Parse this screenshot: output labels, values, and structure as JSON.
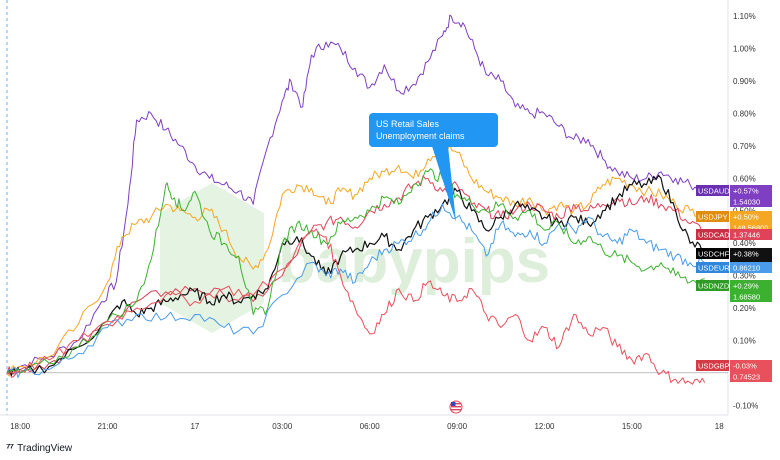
{
  "watermark": "babypips",
  "annotation": {
    "lines": [
      "US Retail Sales",
      "Unemployment claims"
    ],
    "color": "#2196f3"
  },
  "branding": {
    "icon": "tradingview-icon",
    "name": "TradingView"
  },
  "event_icon": "us-flag-icon",
  "chart_data": {
    "type": "line",
    "y_unit": "%",
    "ylim": [
      -0.13,
      1.15
    ],
    "y_ticks": [
      "1.10%",
      "1.00%",
      "0.90%",
      "0.80%",
      "0.70%",
      "0.60%",
      "0.50%",
      "0.40%",
      "0.30%",
      "0.20%",
      "0.10%",
      "-0.10%"
    ],
    "y_tick_values": [
      1.1,
      1.0,
      0.9,
      0.8,
      0.7,
      0.6,
      0.5,
      0.4,
      0.3,
      0.2,
      0.1,
      -0.1
    ],
    "x_ticks": [
      "18:00",
      "21:00",
      "17",
      "03:00",
      "06:00",
      "09:00",
      "12:00",
      "15:00",
      "18"
    ],
    "x_tick_hours": [
      0,
      3,
      6,
      9,
      12,
      15,
      18,
      21,
      24
    ],
    "x_range_hours": [
      -0.45,
      24.3
    ],
    "zero_line": true,
    "series": [
      {
        "name": "USDAUD",
        "color": "#7e3fc2",
        "pct": "+0.57%",
        "price": "1.54030",
        "x": [
          -0.45,
          0,
          1,
          2,
          2.8,
          3.3,
          3.7,
          4.0,
          4.5,
          5.0,
          5.5,
          6.0,
          6.5,
          7.0,
          7.5,
          8.0,
          8.5,
          9.0,
          9.3,
          9.7,
          10.0,
          10.5,
          11.0,
          11.5,
          12.0,
          12.5,
          13.0,
          13.5,
          14.0,
          14.5,
          14.8,
          15.2,
          15.6,
          16.0,
          16.5,
          17.0,
          17.5,
          18.0,
          18.5,
          19.0,
          19.5,
          20.0,
          20.5,
          21.0,
          21.5,
          22.0,
          22.5,
          23.0,
          23.5
        ],
        "y": [
          0.0,
          0.02,
          0.05,
          0.1,
          0.22,
          0.28,
          0.52,
          0.78,
          0.8,
          0.75,
          0.7,
          0.64,
          0.6,
          0.58,
          0.56,
          0.52,
          0.7,
          0.84,
          0.9,
          0.82,
          0.98,
          1.02,
          1.0,
          0.94,
          0.88,
          0.95,
          0.87,
          0.89,
          0.96,
          1.04,
          1.1,
          1.08,
          1.0,
          0.92,
          0.9,
          0.82,
          0.8,
          0.8,
          0.76,
          0.72,
          0.72,
          0.66,
          0.62,
          0.6,
          0.6,
          0.62,
          0.6,
          0.58,
          0.57
        ]
      },
      {
        "name": "USDJPY",
        "color": "#f5a623",
        "pct": "+0.50%",
        "price": "148.56800",
        "x": [
          -0.45,
          0,
          1,
          2,
          3,
          3.5,
          4.0,
          4.5,
          5.0,
          5.5,
          6.0,
          6.5,
          7.0,
          7.5,
          8.0,
          8.5,
          9.0,
          9.5,
          10.0,
          10.5,
          11.0,
          11.5,
          12.0,
          12.5,
          13.0,
          13.5,
          14.0,
          14.5,
          15.0,
          15.5,
          16.0,
          16.5,
          17.0,
          17.5,
          18.0,
          18.5,
          19.0,
          19.5,
          20.0,
          20.5,
          21.0,
          21.5,
          22.0,
          22.5,
          23.0,
          23.5
        ],
        "y": [
          0.0,
          0.02,
          0.05,
          0.15,
          0.28,
          0.42,
          0.46,
          0.48,
          0.52,
          0.5,
          0.48,
          0.5,
          0.44,
          0.36,
          0.32,
          0.38,
          0.55,
          0.58,
          0.57,
          0.52,
          0.56,
          0.55,
          0.6,
          0.62,
          0.64,
          0.6,
          0.66,
          0.7,
          0.68,
          0.6,
          0.56,
          0.54,
          0.52,
          0.54,
          0.5,
          0.52,
          0.5,
          0.52,
          0.58,
          0.6,
          0.58,
          0.56,
          0.55,
          0.52,
          0.5,
          0.5
        ]
      },
      {
        "name": "USDCAD",
        "color": "#e0425a",
        "pct": "",
        "price": "1.37446",
        "x": [
          -0.45,
          0,
          1,
          2,
          3,
          4,
          5,
          6,
          7,
          8,
          9,
          10,
          10.5,
          11,
          11.5,
          12,
          12.5,
          13,
          13.5,
          14,
          14.5,
          15,
          15.5,
          16,
          16.5,
          17,
          17.5,
          18,
          18.5,
          19,
          19.5,
          20,
          20.5,
          21,
          21.5,
          22,
          22.5,
          23,
          23.5
        ],
        "y": [
          0.0,
          0.01,
          0.03,
          0.08,
          0.15,
          0.22,
          0.25,
          0.26,
          0.24,
          0.22,
          0.3,
          0.44,
          0.46,
          0.48,
          0.45,
          0.5,
          0.52,
          0.54,
          0.58,
          0.6,
          0.56,
          0.58,
          0.52,
          0.5,
          0.48,
          0.5,
          0.52,
          0.5,
          0.48,
          0.52,
          0.5,
          0.52,
          0.54,
          0.52,
          0.54,
          0.52,
          0.5,
          0.46,
          0.44
        ]
      },
      {
        "name": "USDCHF",
        "color": "#111111",
        "pct": "+0.38%",
        "price": "0.80400",
        "x": [
          -0.45,
          0,
          1,
          2,
          3,
          3.5,
          4,
          4.5,
          5,
          5.5,
          6,
          6.5,
          7,
          7.5,
          8,
          8.5,
          9,
          9.5,
          10,
          10.5,
          11,
          11.5,
          12,
          12.5,
          13,
          13.5,
          14,
          14.5,
          15,
          15.5,
          16,
          16.5,
          17,
          17.5,
          18,
          18.5,
          19,
          19.5,
          20,
          20.5,
          21,
          21.5,
          22,
          22.5,
          23,
          23.5
        ],
        "y": [
          0.0,
          0.0,
          0.02,
          0.08,
          0.16,
          0.22,
          0.18,
          0.2,
          0.22,
          0.24,
          0.25,
          0.22,
          0.24,
          0.22,
          0.24,
          0.26,
          0.4,
          0.42,
          0.36,
          0.3,
          0.36,
          0.38,
          0.4,
          0.42,
          0.38,
          0.44,
          0.48,
          0.52,
          0.56,
          0.5,
          0.44,
          0.48,
          0.52,
          0.5,
          0.48,
          0.46,
          0.48,
          0.46,
          0.5,
          0.54,
          0.58,
          0.58,
          0.6,
          0.5,
          0.4,
          0.38
        ]
      },
      {
        "name": "USDEUR",
        "color": "#4a9bea",
        "pct": "",
        "price": "0.86210",
        "x": [
          -0.45,
          0,
          1,
          2,
          3,
          4,
          5,
          6,
          7,
          8,
          9,
          10,
          10.5,
          11,
          11.5,
          12,
          12.5,
          13,
          13.5,
          14,
          14.5,
          15,
          15.5,
          16,
          16.5,
          17,
          17.5,
          18,
          18.5,
          19,
          19.5,
          20,
          20.5,
          21,
          21.5,
          22,
          22.5,
          23,
          23.5
        ],
        "y": [
          0.0,
          0.0,
          0.01,
          0.06,
          0.14,
          0.18,
          0.17,
          0.18,
          0.14,
          0.12,
          0.24,
          0.34,
          0.3,
          0.32,
          0.28,
          0.34,
          0.38,
          0.4,
          0.42,
          0.46,
          0.52,
          0.48,
          0.44,
          0.36,
          0.46,
          0.42,
          0.44,
          0.4,
          0.46,
          0.44,
          0.48,
          0.42,
          0.4,
          0.44,
          0.4,
          0.38,
          0.36,
          0.34,
          0.34
        ]
      },
      {
        "name": "USDNZD",
        "color": "#3cb12f",
        "pct": "+0.29%",
        "price": "1.68580",
        "x": [
          -0.45,
          0,
          1,
          2,
          3,
          4,
          4.5,
          5,
          5.3,
          5.6,
          6,
          6.5,
          7,
          7.5,
          8,
          8.5,
          9,
          9.5,
          10,
          10.5,
          11,
          11.5,
          12,
          12.5,
          13,
          13.5,
          14,
          14.5,
          15,
          15.5,
          16,
          16.5,
          17,
          17.5,
          18,
          18.5,
          19,
          19.5,
          20,
          20.5,
          21,
          21.5,
          22,
          22.5,
          23,
          23.5
        ],
        "y": [
          0.0,
          0.0,
          0.03,
          0.08,
          0.16,
          0.22,
          0.35,
          0.58,
          0.54,
          0.5,
          0.56,
          0.44,
          0.4,
          0.36,
          0.18,
          0.2,
          0.4,
          0.46,
          0.44,
          0.4,
          0.46,
          0.48,
          0.5,
          0.54,
          0.52,
          0.58,
          0.62,
          0.6,
          0.55,
          0.52,
          0.5,
          0.52,
          0.48,
          0.5,
          0.44,
          0.46,
          0.4,
          0.42,
          0.38,
          0.36,
          0.34,
          0.32,
          0.34,
          0.3,
          0.28,
          0.29
        ]
      },
      {
        "name": "USDGBP",
        "color": "#e8505b",
        "pct": "-0.03%",
        "price": "0.74523",
        "x": [
          -0.45,
          0,
          1,
          2,
          3,
          4,
          5,
          6,
          7,
          8,
          9,
          10,
          10.5,
          11,
          11.5,
          12,
          12.5,
          13,
          13.5,
          14,
          14.5,
          15,
          15.5,
          16,
          16.5,
          17,
          17.5,
          18,
          18.5,
          19,
          19.5,
          20,
          20.5,
          21,
          21.5,
          22,
          22.5,
          23,
          23.5
        ],
        "y": [
          0.0,
          0.01,
          0.04,
          0.1,
          0.16,
          0.2,
          0.24,
          0.22,
          0.26,
          0.24,
          0.32,
          0.44,
          0.42,
          0.3,
          0.2,
          0.12,
          0.18,
          0.26,
          0.22,
          0.28,
          0.24,
          0.22,
          0.26,
          0.18,
          0.14,
          0.18,
          0.1,
          0.14,
          0.08,
          0.18,
          0.12,
          0.14,
          0.08,
          0.04,
          0.06,
          0.0,
          -0.02,
          -0.03,
          -0.03
        ]
      }
    ]
  }
}
